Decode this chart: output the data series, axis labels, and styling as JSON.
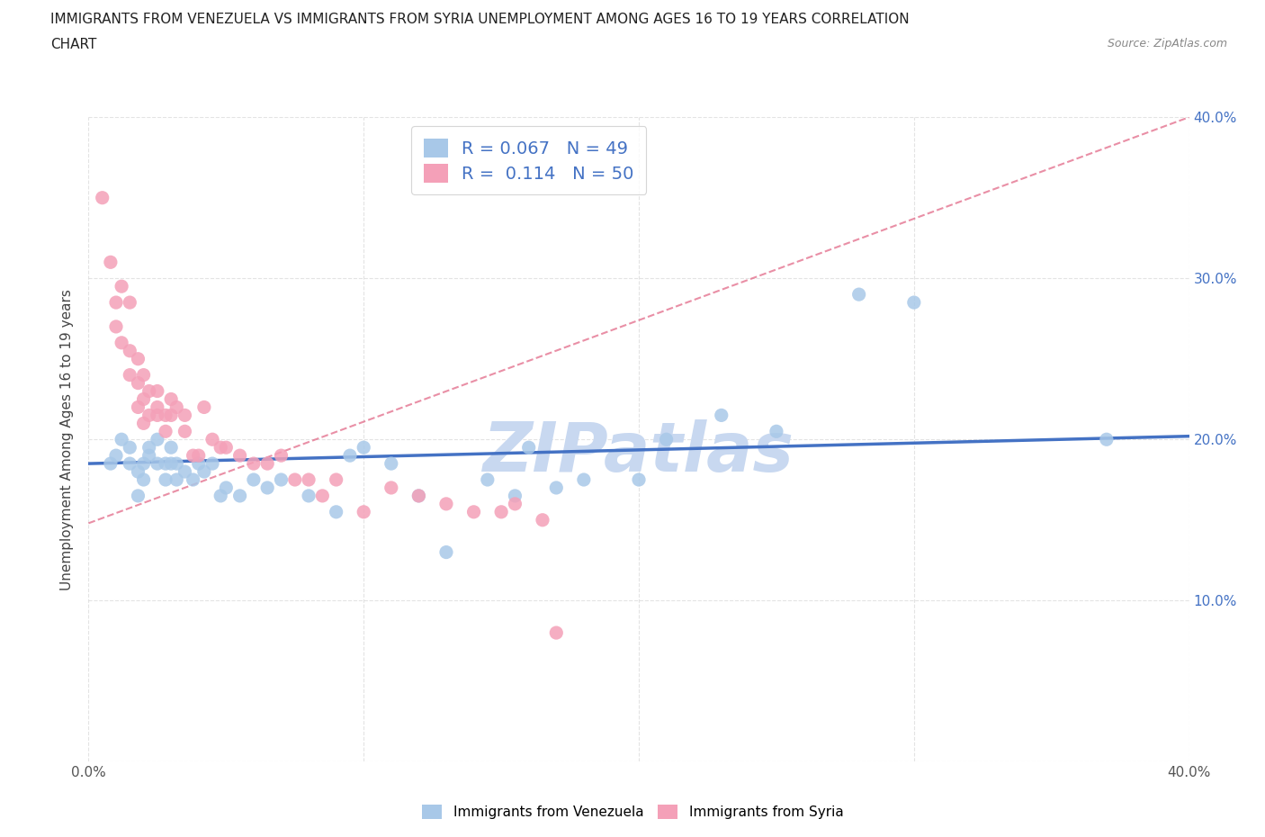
{
  "title_line1": "IMMIGRANTS FROM VENEZUELA VS IMMIGRANTS FROM SYRIA UNEMPLOYMENT AMONG AGES 16 TO 19 YEARS CORRELATION",
  "title_line2": "CHART",
  "source_text": "Source: ZipAtlas.com",
  "ylabel": "Unemployment Among Ages 16 to 19 years",
  "legend_label_blue": "Immigrants from Venezuela",
  "legend_label_pink": "Immigrants from Syria",
  "R_blue": "0.067",
  "N_blue": "49",
  "R_pink": "0.114",
  "N_pink": "50",
  "color_blue": "#a8c8e8",
  "color_pink": "#f4a0b8",
  "color_blue_line": "#4472c4",
  "color_pink_line": "#e06080",
  "watermark_text": "ZIPatlas",
  "watermark_color": "#c8d8f0",
  "xlim": [
    0.0,
    0.4
  ],
  "ylim": [
    0.0,
    0.4
  ],
  "xtick_positions": [
    0.0,
    0.1,
    0.2,
    0.3,
    0.4
  ],
  "ytick_positions": [
    0.0,
    0.1,
    0.2,
    0.3,
    0.4
  ],
  "blue_line_y0": 0.185,
  "blue_line_y1": 0.202,
  "pink_line_y0": 0.148,
  "pink_line_y1": 0.4,
  "venezuela_x": [
    0.008,
    0.01,
    0.012,
    0.015,
    0.015,
    0.018,
    0.018,
    0.02,
    0.02,
    0.022,
    0.022,
    0.025,
    0.025,
    0.028,
    0.028,
    0.03,
    0.03,
    0.032,
    0.032,
    0.035,
    0.038,
    0.04,
    0.042,
    0.045,
    0.048,
    0.05,
    0.055,
    0.06,
    0.065,
    0.07,
    0.08,
    0.09,
    0.095,
    0.1,
    0.11,
    0.12,
    0.13,
    0.145,
    0.155,
    0.16,
    0.17,
    0.18,
    0.2,
    0.21,
    0.23,
    0.25,
    0.28,
    0.3,
    0.37
  ],
  "venezuela_y": [
    0.185,
    0.19,
    0.2,
    0.195,
    0.185,
    0.18,
    0.165,
    0.175,
    0.185,
    0.19,
    0.195,
    0.185,
    0.2,
    0.185,
    0.175,
    0.185,
    0.195,
    0.185,
    0.175,
    0.18,
    0.175,
    0.185,
    0.18,
    0.185,
    0.165,
    0.17,
    0.165,
    0.175,
    0.17,
    0.175,
    0.165,
    0.155,
    0.19,
    0.195,
    0.185,
    0.165,
    0.13,
    0.175,
    0.165,
    0.195,
    0.17,
    0.175,
    0.175,
    0.2,
    0.215,
    0.205,
    0.29,
    0.285,
    0.2
  ],
  "syria_x": [
    0.005,
    0.008,
    0.01,
    0.01,
    0.012,
    0.012,
    0.015,
    0.015,
    0.015,
    0.018,
    0.018,
    0.018,
    0.02,
    0.02,
    0.02,
    0.022,
    0.022,
    0.025,
    0.025,
    0.025,
    0.028,
    0.028,
    0.03,
    0.03,
    0.032,
    0.035,
    0.035,
    0.038,
    0.04,
    0.042,
    0.045,
    0.048,
    0.05,
    0.055,
    0.06,
    0.065,
    0.07,
    0.075,
    0.08,
    0.085,
    0.09,
    0.1,
    0.11,
    0.12,
    0.13,
    0.14,
    0.15,
    0.155,
    0.165,
    0.17
  ],
  "syria_y": [
    0.35,
    0.31,
    0.285,
    0.27,
    0.295,
    0.26,
    0.255,
    0.24,
    0.285,
    0.235,
    0.25,
    0.22,
    0.225,
    0.21,
    0.24,
    0.215,
    0.23,
    0.22,
    0.215,
    0.23,
    0.215,
    0.205,
    0.215,
    0.225,
    0.22,
    0.205,
    0.215,
    0.19,
    0.19,
    0.22,
    0.2,
    0.195,
    0.195,
    0.19,
    0.185,
    0.185,
    0.19,
    0.175,
    0.175,
    0.165,
    0.175,
    0.155,
    0.17,
    0.165,
    0.16,
    0.155,
    0.155,
    0.16,
    0.15,
    0.08
  ],
  "grid_color": "#e0e0e0",
  "background_color": "#ffffff"
}
